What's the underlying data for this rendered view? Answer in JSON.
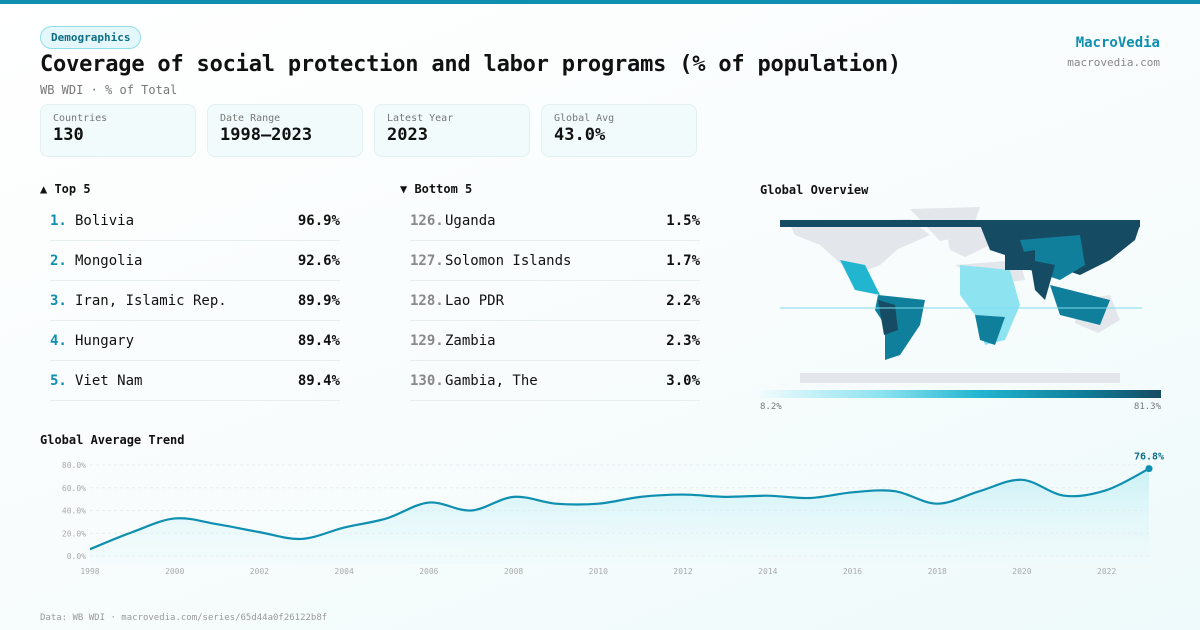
{
  "header": {
    "category": "Demographics",
    "title": "Coverage of social protection and labor programs (% of population)",
    "subtitle": "WB WDI · % of Total",
    "brand": "MacroVedia",
    "brand_url": "macrovedia.com"
  },
  "stats": [
    {
      "label": "Countries",
      "value": "130"
    },
    {
      "label": "Date Range",
      "value": "1998–2023"
    },
    {
      "label": "Latest Year",
      "value": "2023"
    },
    {
      "label": "Global Avg",
      "value": "43.0%"
    }
  ],
  "top5": {
    "title": "▲ Top 5",
    "items": [
      {
        "rank": "1.",
        "name": "Bolivia",
        "value": "96.9%"
      },
      {
        "rank": "2.",
        "name": "Mongolia",
        "value": "92.6%"
      },
      {
        "rank": "3.",
        "name": "Iran, Islamic Rep.",
        "value": "89.9%"
      },
      {
        "rank": "4.",
        "name": "Hungary",
        "value": "89.4%"
      },
      {
        "rank": "5.",
        "name": "Viet Nam",
        "value": "89.4%"
      }
    ]
  },
  "bottom5": {
    "title": "▼ Bottom 5",
    "items": [
      {
        "rank": "126.",
        "name": "Uganda",
        "value": "1.5%"
      },
      {
        "rank": "127.",
        "name": "Solomon Islands",
        "value": "1.7%"
      },
      {
        "rank": "128.",
        "name": "Lao PDR",
        "value": "2.2%"
      },
      {
        "rank": "129.",
        "name": "Zambia",
        "value": "2.3%"
      },
      {
        "rank": "130.",
        "name": "Gambia, The",
        "value": "3.0%"
      }
    ]
  },
  "map": {
    "title": "Global Overview",
    "legend_min": "8.2%",
    "legend_max": "81.3%",
    "colors": [
      "#f0fbfd",
      "#8de3f0",
      "#22b5d0",
      "#0f7f9b",
      "#164c63"
    ],
    "no_data_color": "#e3e6ea"
  },
  "footer": "Data: WB WDI · macrovedia.com/series/65d44a0f26122b8f",
  "chart_data": {
    "type": "area",
    "title": "Global Average Trend",
    "x": [
      1998,
      1999,
      2000,
      2001,
      2002,
      2003,
      2004,
      2005,
      2006,
      2007,
      2008,
      2009,
      2010,
      2011,
      2012,
      2013,
      2014,
      2015,
      2016,
      2017,
      2018,
      2019,
      2020,
      2021,
      2022,
      2023
    ],
    "values": [
      6,
      21,
      33,
      28,
      21,
      15,
      25,
      33,
      47,
      40,
      52,
      46,
      46,
      52,
      54,
      52,
      53,
      51,
      56,
      57,
      46,
      57,
      67,
      53,
      58,
      76.8
    ],
    "ylim": [
      0,
      80
    ],
    "yticks": [
      "0.0%",
      "20.0%",
      "40.0%",
      "60.0%",
      "80.0%"
    ],
    "xticks": [
      "1998",
      "2000",
      "2002",
      "2004",
      "2006",
      "2008",
      "2010",
      "2012",
      "2014",
      "2016",
      "2018",
      "2020",
      "2022"
    ],
    "last_label": "76.8%",
    "grid": true,
    "color": "#0e8fb0"
  }
}
